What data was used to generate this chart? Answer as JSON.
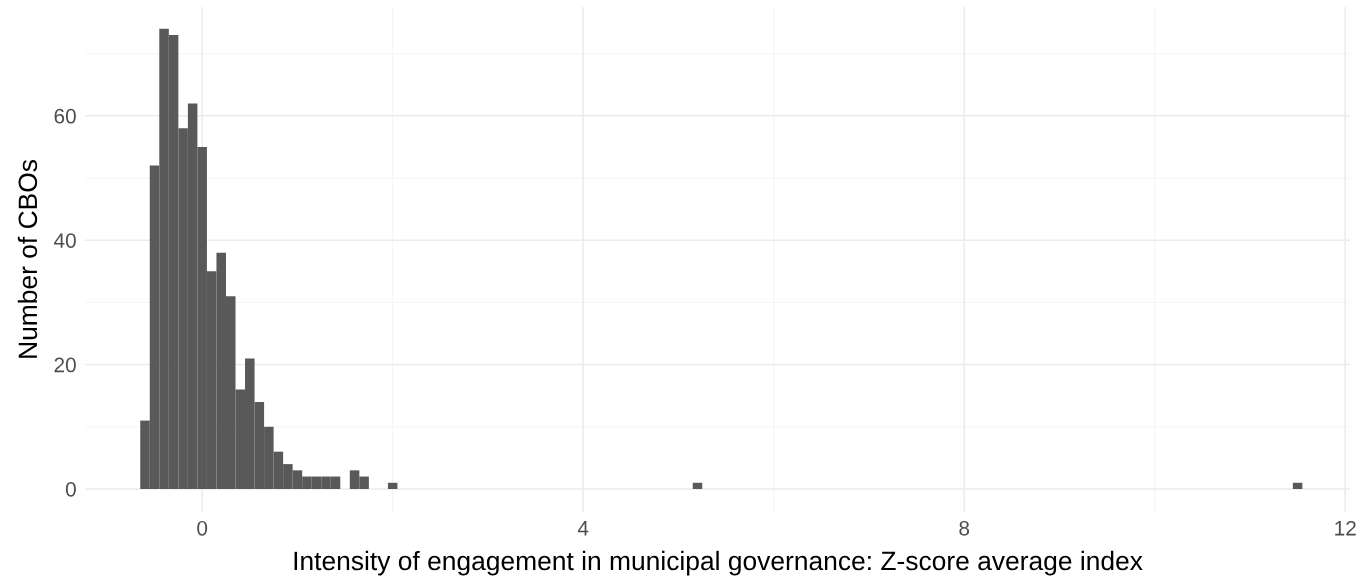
{
  "chart_data": {
    "type": "histogram",
    "xlabel": "Intensity of engagement in municipal governance: Z-score average index",
    "ylabel": "Number of CBOs",
    "bins": [
      -0.65,
      -0.55,
      -0.45,
      -0.35,
      -0.25,
      -0.15,
      -0.05,
      0.05,
      0.15,
      0.25,
      0.35,
      0.45,
      0.55,
      0.65,
      0.75,
      0.85,
      0.95,
      1.05,
      1.15,
      1.25,
      1.35,
      1.45,
      1.55,
      1.65,
      1.75,
      1.85,
      1.95,
      2.05,
      2.15,
      2.25,
      2.35,
      2.45,
      2.55,
      2.65,
      2.75,
      2.85,
      2.95,
      3.05,
      3.15,
      3.25,
      3.35,
      3.45,
      3.55,
      3.65,
      3.75,
      3.85,
      3.95,
      4.05,
      4.15,
      4.25,
      4.35,
      4.45,
      4.55,
      4.65,
      4.75,
      4.85,
      4.95,
      5.05,
      5.15,
      5.25,
      5.35,
      5.45,
      5.55,
      5.65,
      5.75,
      5.85,
      5.95,
      6.05,
      6.15,
      6.25,
      6.35,
      6.45,
      6.55,
      6.65,
      6.75,
      6.85,
      6.95,
      7.05,
      7.15,
      7.25,
      7.35,
      7.45,
      7.55,
      7.65,
      7.75,
      7.85,
      7.95,
      8.05,
      8.15,
      8.25,
      8.35,
      8.45,
      8.55,
      8.65,
      8.75,
      8.85,
      8.95,
      9.05,
      9.15,
      9.25,
      9.35,
      9.45,
      9.55,
      9.65,
      9.75,
      9.85,
      9.95,
      10.05,
      10.15,
      10.25,
      10.35,
      10.45,
      10.55,
      10.65,
      10.75,
      10.85,
      10.95,
      11.05,
      11.15,
      11.25,
      11.35,
      11.45,
      11.55
    ],
    "values": [
      11,
      52,
      74,
      73,
      58,
      62,
      55,
      35,
      38,
      31,
      16,
      21,
      14,
      10,
      6,
      4,
      3,
      2,
      2,
      2,
      2,
      0,
      3,
      2,
      0,
      0,
      1,
      0,
      0,
      0,
      0,
      0,
      0,
      0,
      0,
      0,
      0,
      0,
      0,
      0,
      0,
      0,
      0,
      0,
      0,
      0,
      0,
      0,
      0,
      0,
      0,
      0,
      0,
      0,
      0,
      0,
      0,
      0,
      1,
      0,
      0,
      0,
      0,
      0,
      0,
      0,
      0,
      0,
      0,
      0,
      0,
      0,
      0,
      0,
      0,
      0,
      0,
      0,
      0,
      0,
      0,
      0,
      0,
      0,
      0,
      0,
      0,
      0,
      0,
      0,
      0,
      0,
      0,
      0,
      0,
      0,
      0,
      0,
      0,
      0,
      0,
      0,
      0,
      0,
      0,
      0,
      0,
      0,
      0,
      0,
      0,
      0,
      0,
      0,
      0,
      0,
      0,
      0,
      0,
      0,
      0,
      1
    ],
    "color": "#595959",
    "xlim": [
      -1.23,
      12.05
    ],
    "ylim": [
      -3.7,
      77.5
    ],
    "xticks": [
      0,
      4,
      8,
      12
    ],
    "yticks": [
      0,
      20,
      40,
      60
    ],
    "grid": true
  }
}
